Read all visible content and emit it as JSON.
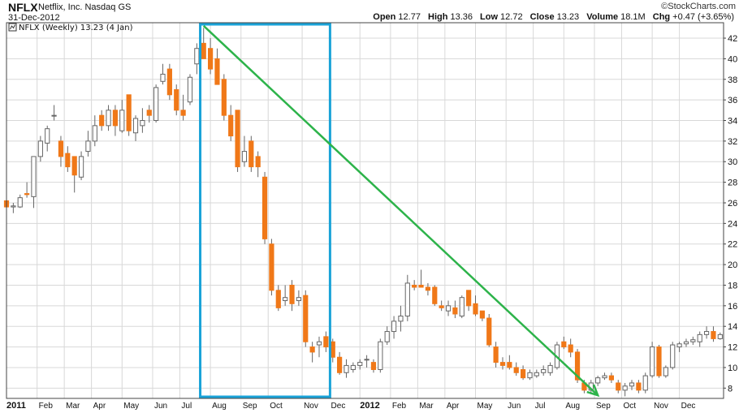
{
  "header": {
    "ticker": "NFLX",
    "company": "Netflix, Inc.",
    "exchange": "Nasdaq GS",
    "date": "31-Dec-2012",
    "source": "©StockCharts.com",
    "open_label": "Open",
    "open": "12.77",
    "high_label": "High",
    "high": "13.36",
    "low_label": "Low",
    "low": "12.72",
    "close_label": "Close",
    "close": "13.23",
    "volume_label": "Volume",
    "volume": "18.1M",
    "chg_label": "Chg",
    "chg": "+0.47 (+3.65%)"
  },
  "colors": {
    "up": "#ffffff",
    "down": "#f07818",
    "candle_outline": "#666666",
    "highlight_box": "#1aa3d8",
    "trend_arrow": "#2db34a",
    "grid": "#d8d8d8"
  },
  "chart_data": {
    "type": "candlestick",
    "legend": "NFLX (Weekly) 13.23 (4 Jan)",
    "legend_icon": "chart-icon",
    "y_axis_side": "right",
    "ylim": [
      7,
      43.5
    ],
    "y_ticks": [
      8,
      10,
      12,
      14,
      16,
      18,
      20,
      22,
      24,
      26,
      28,
      30,
      32,
      34,
      36,
      38,
      40,
      42
    ],
    "x_range": [
      0,
      105.5
    ],
    "x_ticks": [
      {
        "label": "2011",
        "x": 0,
        "year": true
      },
      {
        "label": "Feb",
        "x": 4.5
      },
      {
        "label": "Mar",
        "x": 8.5
      },
      {
        "label": "Apr",
        "x": 12.5
      },
      {
        "label": "May",
        "x": 17
      },
      {
        "label": "Jun",
        "x": 21.5
      },
      {
        "label": "Jul",
        "x": 25.5
      },
      {
        "label": "Aug",
        "x": 30
      },
      {
        "label": "Sep",
        "x": 34.5
      },
      {
        "label": "Oct",
        "x": 38.5
      },
      {
        "label": "Nov",
        "x": 43.5
      },
      {
        "label": "Dec",
        "x": 47.5
      },
      {
        "label": "2012",
        "x": 52,
        "year": true
      },
      {
        "label": "Feb",
        "x": 56.5
      },
      {
        "label": "Mar",
        "x": 60.5
      },
      {
        "label": "Apr",
        "x": 64.5
      },
      {
        "label": "May",
        "x": 69
      },
      {
        "label": "Jun",
        "x": 73.5
      },
      {
        "label": "Jul",
        "x": 77.5
      },
      {
        "label": "Aug",
        "x": 82
      },
      {
        "label": "Sep",
        "x": 86.5
      },
      {
        "label": "Oct",
        "x": 90.5
      },
      {
        "label": "Nov",
        "x": 95
      },
      {
        "label": "Dec",
        "x": 99
      }
    ],
    "candles": [
      [
        0,
        26.2,
        26.5,
        25.2,
        25.6
      ],
      [
        1,
        25.6,
        26.0,
        25.0,
        25.7
      ],
      [
        2,
        25.6,
        26.8,
        25.5,
        26.5
      ],
      [
        3,
        26.9,
        28.0,
        26.5,
        26.8
      ],
      [
        4,
        26.6,
        30.5,
        25.5,
        30.5
      ],
      [
        5,
        30.5,
        32.5,
        30.0,
        32.0
      ],
      [
        6,
        31.8,
        33.5,
        31.0,
        33.2
      ],
      [
        7,
        34.5,
        35.5,
        34.0,
        34.5
      ],
      [
        8,
        32.0,
        32.5,
        29.5,
        30.5
      ],
      [
        9,
        30.8,
        31.5,
        29.0,
        29.5
      ],
      [
        10,
        30.5,
        30.5,
        27.0,
        28.7
      ],
      [
        11,
        28.5,
        31.0,
        28.2,
        30.5
      ],
      [
        12,
        31.0,
        33.0,
        30.5,
        32.0
      ],
      [
        13,
        32.0,
        34.5,
        31.5,
        33.5
      ],
      [
        14,
        34.5,
        35.0,
        33.0,
        33.5
      ],
      [
        15,
        33.5,
        35.5,
        33.0,
        35.0
      ],
      [
        16,
        35.0,
        35.5,
        32.5,
        33.5
      ],
      [
        17,
        33.0,
        36.0,
        32.8,
        35.0
      ],
      [
        18,
        36.5,
        36.5,
        32.5,
        33.0
      ],
      [
        19,
        32.8,
        34.5,
        32.0,
        34.2
      ],
      [
        20,
        33.5,
        35.2,
        32.8,
        34.0
      ],
      [
        21,
        35.0,
        35.5,
        33.8,
        34.5
      ],
      [
        22,
        34.0,
        37.5,
        33.8,
        37.2
      ],
      [
        23,
        37.8,
        39.5,
        37.5,
        38.5
      ],
      [
        24,
        39.0,
        39.5,
        36.0,
        36.5
      ],
      [
        25,
        37.0,
        37.5,
        34.5,
        35.0
      ],
      [
        26,
        35.0,
        36.5,
        34.0,
        34.5
      ],
      [
        27,
        35.8,
        38.5,
        35.5,
        38.2
      ],
      [
        28,
        39.5,
        41.5,
        38.5,
        41.0
      ],
      [
        29,
        41.5,
        43.0,
        40.0,
        40.0
      ],
      [
        30,
        41.0,
        42.0,
        38.5,
        39.0
      ],
      [
        31,
        40.0,
        41.0,
        37.5,
        37.5
      ],
      [
        32,
        38.0,
        38.5,
        34.0,
        34.5
      ],
      [
        33,
        34.5,
        35.5,
        32.0,
        32.5
      ],
      [
        34,
        35.0,
        35.0,
        29.0,
        29.5
      ],
      [
        35,
        30.0,
        32.5,
        29.5,
        31.0
      ],
      [
        36,
        32.0,
        32.5,
        29.0,
        29.5
      ],
      [
        37,
        30.5,
        31.0,
        28.5,
        29.5
      ],
      [
        38,
        28.5,
        29.0,
        22.0,
        22.5
      ],
      [
        39,
        22.0,
        22.5,
        17.0,
        17.5
      ],
      [
        40,
        17.5,
        18.0,
        15.5,
        15.8
      ],
      [
        41,
        16.5,
        18.0,
        16.0,
        16.8
      ],
      [
        42,
        18.0,
        18.5,
        15.5,
        16.2
      ],
      [
        43,
        16.5,
        17.5,
        16.0,
        16.8
      ],
      [
        44,
        17.0,
        17.5,
        12.0,
        12.5
      ],
      [
        45,
        12.0,
        12.5,
        10.5,
        11.5
      ],
      [
        46,
        12.2,
        13.0,
        11.0,
        12.5
      ],
      [
        47,
        13.0,
        13.5,
        11.5,
        12.0
      ],
      [
        48,
        12.5,
        12.8,
        10.5,
        11.0
      ],
      [
        49,
        11.0,
        11.5,
        9.3,
        9.5
      ],
      [
        50,
        9.5,
        10.8,
        9.0,
        10.2
      ],
      [
        51,
        9.8,
        10.5,
        9.5,
        10.2
      ],
      [
        52,
        10.2,
        10.8,
        9.8,
        10.5
      ],
      [
        53,
        10.8,
        11.2,
        10.0,
        10.8
      ],
      [
        54,
        10.5,
        10.8,
        9.5,
        9.8
      ],
      [
        55,
        9.8,
        12.8,
        9.5,
        12.5
      ],
      [
        56,
        12.5,
        14.0,
        12.2,
        13.5
      ],
      [
        57,
        13.5,
        15.0,
        12.8,
        14.5
      ],
      [
        58,
        14.5,
        16.0,
        13.5,
        15.0
      ],
      [
        59,
        15.0,
        19.0,
        14.5,
        18.2
      ],
      [
        60,
        18.0,
        18.5,
        17.5,
        17.8
      ],
      [
        61,
        18.0,
        19.5,
        17.8,
        17.8
      ],
      [
        62,
        17.8,
        18.2,
        17.0,
        17.5
      ],
      [
        63,
        17.8,
        18.0,
        16.0,
        16.2
      ],
      [
        64,
        16.0,
        16.5,
        15.5,
        15.8
      ],
      [
        65,
        15.5,
        16.5,
        15.0,
        16.0
      ],
      [
        66,
        15.8,
        16.5,
        14.8,
        15.2
      ],
      [
        67,
        15.0,
        17.0,
        14.8,
        16.8
      ],
      [
        68,
        17.5,
        17.5,
        15.5,
        16.0
      ],
      [
        69,
        16.2,
        17.0,
        15.0,
        15.2
      ],
      [
        70,
        15.5,
        15.5,
        14.5,
        14.8
      ],
      [
        71,
        14.8,
        15.2,
        12.0,
        12.2
      ],
      [
        72,
        12.0,
        12.5,
        10.0,
        10.5
      ],
      [
        73,
        10.5,
        11.0,
        9.8,
        10.2
      ],
      [
        74,
        10.5,
        11.2,
        9.8,
        10.0
      ],
      [
        75,
        10.0,
        10.5,
        9.2,
        9.5
      ],
      [
        76,
        9.8,
        10.2,
        8.8,
        9.0
      ],
      [
        77,
        9.0,
        9.8,
        8.8,
        9.5
      ],
      [
        78,
        9.2,
        9.8,
        9.0,
        9.5
      ],
      [
        79,
        9.5,
        10.2,
        9.2,
        9.8
      ],
      [
        80,
        9.5,
        10.5,
        9.2,
        10.2
      ],
      [
        81,
        10.0,
        12.5,
        9.8,
        12.2
      ],
      [
        82,
        12.5,
        13.0,
        11.8,
        12.0
      ],
      [
        83,
        12.2,
        12.8,
        11.0,
        11.5
      ],
      [
        84,
        11.5,
        11.8,
        8.5,
        8.8
      ],
      [
        85,
        8.5,
        8.8,
        7.5,
        7.8
      ],
      [
        86,
        7.8,
        8.8,
        7.5,
        8.5
      ],
      [
        87,
        8.5,
        9.2,
        8.2,
        9.0
      ],
      [
        88,
        9.0,
        9.5,
        8.8,
        9.2
      ],
      [
        89,
        9.2,
        9.5,
        8.5,
        8.8
      ],
      [
        90,
        8.5,
        8.8,
        7.5,
        7.8
      ],
      [
        91,
        7.8,
        8.5,
        7.2,
        8.2
      ],
      [
        92,
        8.2,
        8.8,
        7.8,
        8.5
      ],
      [
        93,
        8.5,
        8.8,
        7.5,
        7.8
      ],
      [
        94,
        7.8,
        9.5,
        7.5,
        9.2
      ],
      [
        95,
        9.2,
        12.5,
        9.0,
        12.0
      ],
      [
        96,
        12.0,
        12.2,
        9.0,
        9.2
      ],
      [
        97,
        9.2,
        10.2,
        9.0,
        10.0
      ],
      [
        98,
        10.0,
        12.5,
        9.8,
        12.2
      ],
      [
        99,
        12.0,
        12.5,
        11.5,
        12.3
      ],
      [
        100,
        12.3,
        12.8,
        12.0,
        12.5
      ],
      [
        101,
        12.5,
        13.0,
        12.2,
        12.7
      ],
      [
        102,
        12.5,
        13.5,
        12.0,
        13.2
      ],
      [
        103,
        13.2,
        14.0,
        12.8,
        13.5
      ],
      [
        104,
        13.5,
        14.0,
        12.5,
        12.8
      ],
      [
        105,
        12.8,
        13.4,
        12.7,
        13.2
      ]
    ],
    "annotations": {
      "highlight_box": {
        "x0": 28.5,
        "x1": 47.6,
        "y_top": 43.5,
        "y_bottom": 7
      },
      "trend_arrow": {
        "from": {
          "x": 29,
          "y": 43.2
        },
        "to": {
          "x": 87,
          "y": 7.3
        }
      }
    }
  }
}
